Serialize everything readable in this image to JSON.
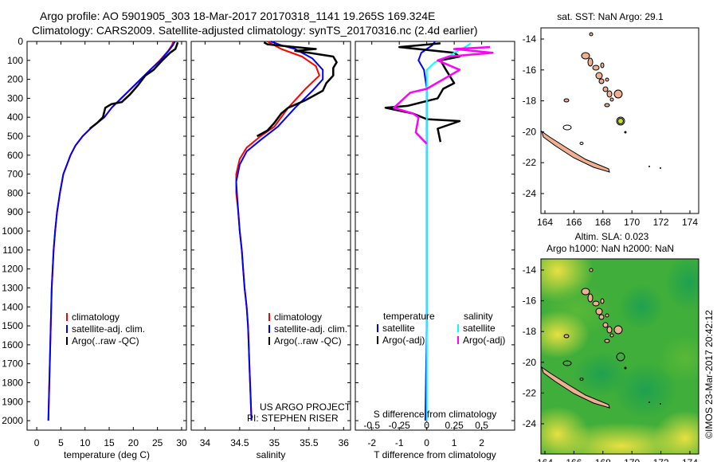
{
  "header": {
    "line1": "Argo profile: AO 5901905_303 18-Mar-2017 20170318_1141 19.265S 169.324E",
    "line2": "Climatology: CARS2009. Satellite-adjusted climatology: synTS_20170316.nc (2.4d earlier)"
  },
  "colors": {
    "climatology": "#ff0000",
    "satellite": "#0000ff",
    "argo": "#000000",
    "sal_sat": "#00ffff",
    "sal_argo": "#ff00ff",
    "land": "#f0b090"
  },
  "chart_data": [
    {
      "id": "temperature",
      "type": "line",
      "xlabel": "temperature (deg C)",
      "xlim": [
        -2,
        31
      ],
      "ylim": [
        2050,
        0
      ],
      "xticks": [
        0,
        5,
        10,
        15,
        20,
        25,
        30
      ],
      "yticks": [
        0,
        100,
        200,
        300,
        400,
        500,
        600,
        700,
        800,
        900,
        1000,
        1100,
        1200,
        1300,
        1400,
        1500,
        1600,
        1700,
        1800,
        1900,
        2000
      ],
      "legend": [
        "climatology",
        "satellite-adj. clim.",
        "Argo(..raw -QC)"
      ],
      "series": [
        {
          "name": "climatology",
          "color": "#ff0000",
          "points": [
            [
              28.3,
              0
            ],
            [
              28.0,
              20
            ],
            [
              27.2,
              50
            ],
            [
              25.5,
              100
            ],
            [
              23.5,
              150
            ],
            [
              21.5,
              200
            ],
            [
              19.5,
              250
            ],
            [
              17.5,
              300
            ],
            [
              15.5,
              350
            ],
            [
              14.0,
              400
            ],
            [
              11.5,
              450
            ],
            [
              9.5,
              500
            ],
            [
              8.0,
              550
            ],
            [
              7.0,
              600
            ],
            [
              5.5,
              700
            ],
            [
              4.8,
              800
            ],
            [
              4.2,
              900
            ],
            [
              3.8,
              1000
            ],
            [
              3.5,
              1100
            ],
            [
              3.3,
              1200
            ],
            [
              3.1,
              1300
            ],
            [
              3.0,
              1400
            ],
            [
              2.9,
              1500
            ],
            [
              2.8,
              1600
            ],
            [
              2.7,
              1700
            ],
            [
              2.6,
              1800
            ],
            [
              2.5,
              1900
            ],
            [
              2.4,
              2000
            ]
          ]
        },
        {
          "name": "satellite-adj. clim.",
          "color": "#0000ff",
          "points": [
            [
              28.6,
              0
            ],
            [
              28.2,
              20
            ],
            [
              27.3,
              50
            ],
            [
              25.6,
              100
            ],
            [
              23.5,
              150
            ],
            [
              21.5,
              200
            ],
            [
              19.5,
              250
            ],
            [
              17.5,
              300
            ],
            [
              15.5,
              350
            ],
            [
              14.0,
              400
            ],
            [
              11.5,
              450
            ],
            [
              9.5,
              500
            ],
            [
              8.0,
              550
            ],
            [
              7.0,
              600
            ],
            [
              5.5,
              700
            ],
            [
              4.8,
              800
            ],
            [
              4.2,
              900
            ],
            [
              3.8,
              1000
            ],
            [
              3.5,
              1100
            ],
            [
              3.3,
              1200
            ],
            [
              3.1,
              1300
            ],
            [
              3.0,
              1400
            ],
            [
              2.9,
              1500
            ],
            [
              2.8,
              1600
            ],
            [
              2.7,
              1700
            ],
            [
              2.6,
              1800
            ],
            [
              2.5,
              1900
            ],
            [
              2.4,
              2000
            ]
          ]
        },
        {
          "name": "Argo(..raw -QC)",
          "color": "#000000",
          "points": [
            [
              29.2,
              5
            ],
            [
              29.0,
              20
            ],
            [
              28.7,
              40
            ],
            [
              27.6,
              60
            ],
            [
              26.0,
              100
            ],
            [
              24.2,
              150
            ],
            [
              22.5,
              180
            ],
            [
              21.0,
              230
            ],
            [
              19.3,
              280
            ],
            [
              17.6,
              320
            ],
            [
              15.5,
              330
            ],
            [
              14.2,
              350
            ],
            [
              13.7,
              400
            ],
            [
              12.5,
              430
            ],
            [
              11.0,
              460
            ]
          ]
        }
      ]
    },
    {
      "id": "salinity",
      "type": "line",
      "xlabel": "salinity",
      "xlim": [
        33.8,
        36.1
      ],
      "ylim": [
        2050,
        0
      ],
      "xticks": [
        34,
        34.5,
        35,
        35.5,
        36
      ],
      "legend": [
        "climatology",
        "satellite-adj. clim.",
        "Argo(..raw -QC)"
      ],
      "annotation": [
        "US ARGO PROJECT",
        "PI: STEPHEN RISER"
      ],
      "series": [
        {
          "name": "climatology",
          "color": "#ff0000",
          "points": [
            [
              34.9,
              0
            ],
            [
              35.0,
              20
            ],
            [
              35.1,
              40
            ],
            [
              35.4,
              80
            ],
            [
              35.6,
              130
            ],
            [
              35.65,
              180
            ],
            [
              35.45,
              250
            ],
            [
              35.2,
              350
            ],
            [
              35.0,
              450
            ],
            [
              34.8,
              500
            ],
            [
              34.6,
              560
            ],
            [
              34.5,
              620
            ],
            [
              34.45,
              700
            ],
            [
              34.45,
              800
            ],
            [
              34.48,
              900
            ],
            [
              34.5,
              1000
            ],
            [
              34.53,
              1100
            ],
            [
              34.55,
              1200
            ],
            [
              34.57,
              1300
            ],
            [
              34.6,
              1400
            ],
            [
              34.62,
              1500
            ],
            [
              34.63,
              1600
            ],
            [
              34.64,
              1700
            ],
            [
              34.65,
              1800
            ],
            [
              34.66,
              1900
            ],
            [
              34.67,
              2000
            ]
          ]
        },
        {
          "name": "satellite-adj. clim.",
          "color": "#0000ff",
          "points": [
            [
              34.95,
              0
            ],
            [
              35.1,
              20
            ],
            [
              35.3,
              40
            ],
            [
              35.55,
              90
            ],
            [
              35.7,
              150
            ],
            [
              35.7,
              200
            ],
            [
              35.55,
              260
            ],
            [
              35.3,
              350
            ],
            [
              35.05,
              450
            ],
            [
              34.8,
              520
            ],
            [
              34.6,
              580
            ],
            [
              34.5,
              650
            ],
            [
              34.45,
              740
            ],
            [
              34.46,
              800
            ],
            [
              34.48,
              900
            ],
            [
              34.5,
              1000
            ],
            [
              34.53,
              1100
            ],
            [
              34.55,
              1200
            ],
            [
              34.57,
              1300
            ],
            [
              34.6,
              1400
            ],
            [
              34.62,
              1500
            ],
            [
              34.63,
              1600
            ],
            [
              34.64,
              1700
            ],
            [
              34.65,
              1800
            ],
            [
              34.66,
              1900
            ],
            [
              34.67,
              2000
            ]
          ]
        },
        {
          "name": "Argo(..raw -QC)",
          "color": "#000000",
          "points": [
            [
              34.85,
              5
            ],
            [
              34.9,
              15
            ],
            [
              35.3,
              30
            ],
            [
              35.6,
              40
            ],
            [
              35.3,
              50
            ],
            [
              35.5,
              60
            ],
            [
              35.85,
              80
            ],
            [
              35.9,
              110
            ],
            [
              35.85,
              140
            ],
            [
              35.85,
              180
            ],
            [
              35.75,
              220
            ],
            [
              35.7,
              260
            ],
            [
              35.45,
              310
            ],
            [
              35.2,
              350
            ],
            [
              35.1,
              380
            ],
            [
              35.0,
              430
            ],
            [
              34.9,
              470
            ],
            [
              34.75,
              500
            ]
          ]
        }
      ]
    },
    {
      "id": "difference",
      "type": "line",
      "xlabel": "T difference from climatology",
      "xlabel2": "S difference from climatology",
      "xlim": [
        -2.6,
        3.2
      ],
      "ylim": [
        2050,
        0
      ],
      "xticks": [
        -2,
        -1,
        0,
        1,
        2
      ],
      "xticks2": [
        "-0.5",
        "-0.25",
        "0",
        "0.25",
        "0.5"
      ],
      "legend_headers": [
        "temperature",
        "salinity"
      ],
      "legend": [
        "satellite",
        "Argo(-adj)",
        "satellite",
        "Argo(-adj)"
      ],
      "series": [
        {
          "name": "satellite",
          "color": "#0000ff",
          "points": [
            [
              0.3,
              0
            ],
            [
              0.2,
              20
            ],
            [
              0.0,
              40
            ],
            [
              -0.2,
              60
            ],
            [
              -0.3,
              100
            ],
            [
              -0.1,
              150
            ],
            [
              0.0,
              250
            ],
            [
              0.0,
              500
            ],
            [
              0.0,
              1000
            ],
            [
              0.0,
              1500
            ],
            [
              -0.05,
              2000
            ]
          ]
        },
        {
          "name": "Argo(-adj)",
          "color": "#000000",
          "points": [
            [
              0.5,
              10
            ],
            [
              -1.0,
              30
            ],
            [
              1.0,
              60
            ],
            [
              1.2,
              80
            ],
            [
              0.5,
              100
            ],
            [
              0.7,
              150
            ],
            [
              1.0,
              220
            ],
            [
              0.6,
              250
            ],
            [
              0.4,
              300
            ],
            [
              -0.7,
              340
            ],
            [
              -1.5,
              350
            ],
            [
              -0.5,
              380
            ],
            [
              0.0,
              410
            ],
            [
              1.2,
              420
            ],
            [
              0.4,
              460
            ],
            [
              0.5,
              530
            ]
          ]
        },
        {
          "name": "salinity satellite",
          "color": "#00ffff",
          "points": [
            [
              1.6,
              10
            ],
            [
              1.4,
              30
            ],
            [
              1.0,
              60
            ],
            [
              0.8,
              80
            ],
            [
              0.3,
              110
            ],
            [
              0.0,
              150
            ],
            [
              0.0,
              200
            ],
            [
              0.0,
              300
            ],
            [
              0.0,
              500
            ],
            [
              0.0,
              1000
            ],
            [
              0.0,
              1500
            ],
            [
              0.0,
              2000
            ]
          ]
        },
        {
          "name": "salinity Argo(-adj)",
          "color": "#ff00ff",
          "points": [
            [
              2.3,
              30
            ],
            [
              1.0,
              40
            ],
            [
              2.4,
              60
            ],
            [
              0.8,
              80
            ],
            [
              0.4,
              100
            ],
            [
              1.2,
              150
            ],
            [
              0.0,
              250
            ],
            [
              -0.6,
              270
            ],
            [
              -1.2,
              350
            ],
            [
              -0.5,
              380
            ],
            [
              -0.3,
              400
            ],
            [
              -0.4,
              480
            ],
            [
              0.0,
              540
            ]
          ]
        }
      ]
    }
  ],
  "maps": {
    "sst_map": {
      "title": "sat. SST: NaN Argo: 29.1",
      "xticks": [
        "164",
        "166",
        "168",
        "170",
        "172",
        "174"
      ],
      "yticks": [
        "-14",
        "-16",
        "-18",
        "-20",
        "-22",
        "-24"
      ]
    },
    "sla_map": {
      "title1": "Altim. SLA: 0.023",
      "title2": "Argo h1000: NaN h2000: NaN",
      "xticks": [
        "164",
        "166",
        "168",
        "170",
        "172",
        "174"
      ],
      "yticks": [
        "-14",
        "-16",
        "-18",
        "-20",
        "-22",
        "-24"
      ]
    },
    "stamp": "©IMOS 23-Mar-2017 20:42:12"
  }
}
